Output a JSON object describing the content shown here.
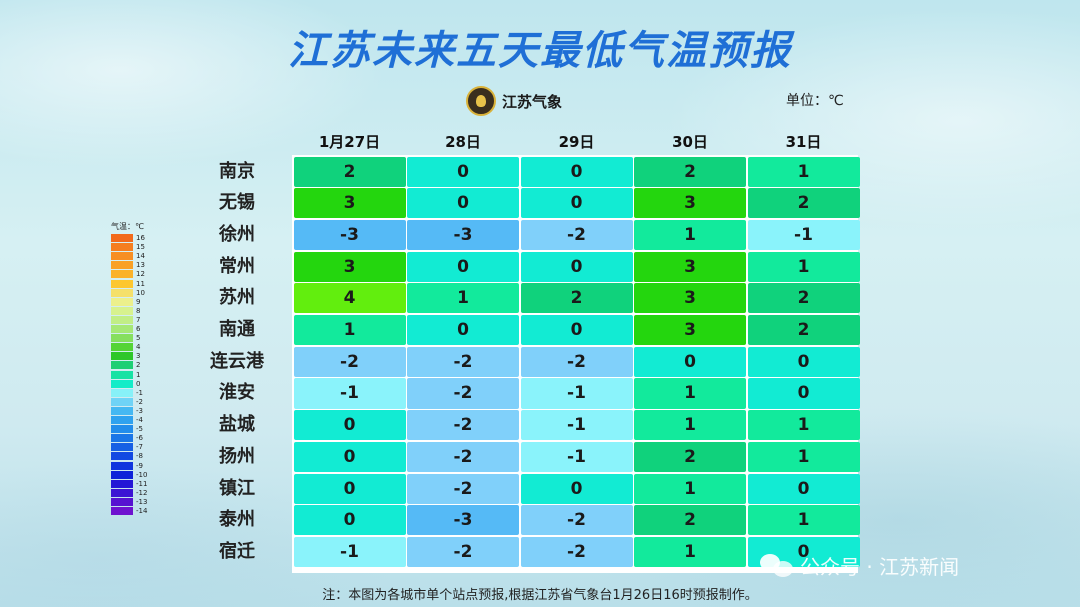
{
  "title": "江苏未来五天最低气温预报",
  "logo_text": "江苏气象",
  "unit_label": "单位：℃",
  "note": "注：本图为各城市单个站点预报,根据江苏省气象台1月26日16时预报制作。",
  "watermark": "公众号 · 江苏新闻",
  "legend": {
    "title": "气温：℃",
    "items": [
      {
        "label": "16",
        "color": "#f26a1b"
      },
      {
        "label": "15",
        "color": "#f57e1f"
      },
      {
        "label": "14",
        "color": "#f78f23"
      },
      {
        "label": "13",
        "color": "#f9a126"
      },
      {
        "label": "12",
        "color": "#fbb22a"
      },
      {
        "label": "11",
        "color": "#fdc72f"
      },
      {
        "label": "10",
        "color": "#f5e06a"
      },
      {
        "label": "9",
        "color": "#ecf08c"
      },
      {
        "label": "8",
        "color": "#d7f28e"
      },
      {
        "label": "7",
        "color": "#c1ee86"
      },
      {
        "label": "6",
        "color": "#a6e876"
      },
      {
        "label": "5",
        "color": "#86df5f"
      },
      {
        "label": "4",
        "color": "#55d436"
      },
      {
        "label": "3",
        "color": "#2ec72a"
      },
      {
        "label": "2",
        "color": "#1ecf74"
      },
      {
        "label": "1",
        "color": "#19e2a4"
      },
      {
        "label": "0",
        "color": "#14ecc8"
      },
      {
        "label": "-1",
        "color": "#87f1f8"
      },
      {
        "label": "-2",
        "color": "#6fd3f6"
      },
      {
        "label": "-3",
        "color": "#45b8f2"
      },
      {
        "label": "-4",
        "color": "#2fa2ef"
      },
      {
        "label": "-5",
        "color": "#228deb"
      },
      {
        "label": "-6",
        "color": "#1a76e7"
      },
      {
        "label": "-7",
        "color": "#1660e4"
      },
      {
        "label": "-8",
        "color": "#1249e2"
      },
      {
        "label": "-9",
        "color": "#0f35de"
      },
      {
        "label": "-10",
        "color": "#0c22d9"
      },
      {
        "label": "-11",
        "color": "#2317d6"
      },
      {
        "label": "-12",
        "color": "#3b14d4"
      },
      {
        "label": "-13",
        "color": "#5612d1"
      },
      {
        "label": "-14",
        "color": "#6e12cf"
      }
    ]
  },
  "value_colors": {
    "4": "#62ee0e",
    "3": "#24d60e",
    "2": "#10d27c",
    "1": "#12ea9c",
    "0": "#12ebd3",
    "-1": "#8af3fb",
    "-2": "#80d0fa",
    "-3": "#55baf6"
  },
  "chart_data": {
    "type": "table",
    "columns": [
      "1月27日",
      "28日",
      "29日",
      "30日",
      "31日"
    ],
    "rows": [
      {
        "city": "南京",
        "values": [
          2,
          0,
          0,
          2,
          1
        ]
      },
      {
        "city": "无锡",
        "values": [
          3,
          0,
          0,
          3,
          2
        ]
      },
      {
        "city": "徐州",
        "values": [
          -3,
          -3,
          -2,
          1,
          -1
        ]
      },
      {
        "city": "常州",
        "values": [
          3,
          0,
          0,
          3,
          1
        ]
      },
      {
        "city": "苏州",
        "values": [
          4,
          1,
          2,
          3,
          2
        ]
      },
      {
        "city": "南通",
        "values": [
          1,
          0,
          0,
          3,
          2
        ]
      },
      {
        "city": "连云港",
        "values": [
          -2,
          -2,
          -2,
          0,
          0
        ]
      },
      {
        "city": "淮安",
        "values": [
          -1,
          -2,
          -1,
          1,
          0
        ]
      },
      {
        "city": "盐城",
        "values": [
          0,
          -2,
          -1,
          1,
          1
        ]
      },
      {
        "city": "扬州",
        "values": [
          0,
          -2,
          -1,
          2,
          1
        ]
      },
      {
        "city": "镇江",
        "values": [
          0,
          -2,
          0,
          1,
          0
        ]
      },
      {
        "city": "泰州",
        "values": [
          0,
          -3,
          -2,
          2,
          1
        ]
      },
      {
        "city": "宿迁",
        "values": [
          -1,
          -2,
          -2,
          1,
          0
        ]
      }
    ]
  }
}
